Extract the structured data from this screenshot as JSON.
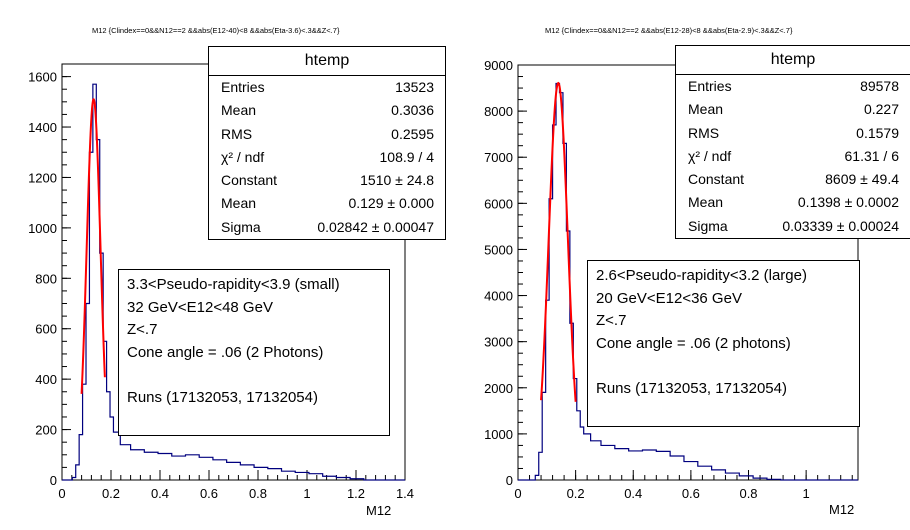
{
  "chart_data": [
    {
      "type": "histogram",
      "title": "M12 {Clindex==0&&N12==2 &&abs(E12-40)<8 &&abs(Eta-3.6)<.3&&Z<.7}",
      "xlabel": "M12",
      "ylabel": "",
      "xlim": [
        0,
        1.4
      ],
      "ylim": [
        0,
        1650
      ],
      "x_ticks": [
        "0",
        "0.2",
        "0.4",
        "0.6",
        "0.8",
        "1",
        "1.2",
        "1.4"
      ],
      "y_ticks": [
        "0",
        "200",
        "400",
        "600",
        "800",
        "1000",
        "1200",
        "1400",
        "1600"
      ],
      "bin_width": 0.014,
      "histogram": [
        [
          0.0,
          0
        ],
        [
          0.042,
          10
        ],
        [
          0.056,
          60
        ],
        [
          0.07,
          180
        ],
        [
          0.084,
          380
        ],
        [
          0.098,
          700
        ],
        [
          0.112,
          1300
        ],
        [
          0.126,
          1570
        ],
        [
          0.14,
          1350
        ],
        [
          0.154,
          900
        ],
        [
          0.168,
          550
        ],
        [
          0.182,
          350
        ],
        [
          0.196,
          250
        ],
        [
          0.21,
          190
        ],
        [
          0.238,
          140
        ],
        [
          0.28,
          120
        ],
        [
          0.336,
          110
        ],
        [
          0.392,
          105
        ],
        [
          0.448,
          95
        ],
        [
          0.504,
          100
        ],
        [
          0.56,
          90
        ],
        [
          0.616,
          80
        ],
        [
          0.672,
          70
        ],
        [
          0.728,
          60
        ],
        [
          0.784,
          50
        ],
        [
          0.84,
          45
        ],
        [
          0.896,
          35
        ],
        [
          0.952,
          30
        ],
        [
          1.008,
          25
        ],
        [
          1.064,
          15
        ],
        [
          1.12,
          10
        ],
        [
          1.176,
          5
        ],
        [
          1.232,
          0
        ],
        [
          1.4,
          0
        ]
      ],
      "fit": {
        "function": "gaus",
        "constant": 1510,
        "mean": 0.129,
        "sigma": 0.02842,
        "range": [
          0.08,
          0.175
        ]
      },
      "stats_box": {
        "title": "htemp",
        "rows": [
          {
            "label": "Entries",
            "value": "13523"
          },
          {
            "label": "Mean",
            "value": "0.3036"
          },
          {
            "label": "RMS",
            "value": "0.2595"
          },
          {
            "label": "χ² / ndf",
            "value": "108.9 / 4"
          },
          {
            "label": "Constant",
            "value": "1510 ± 24.8"
          },
          {
            "label": "Mean",
            "value": "0.129 ± 0.000"
          },
          {
            "label": "Sigma",
            "value": "0.02842 ± 0.00047"
          }
        ]
      },
      "annotation": [
        "3.3<Pseudo-rapidity<3.9 (small)",
        "32 GeV<E12<48 GeV",
        "Z<.7",
        "Cone angle = .06 (2 Photons)",
        "",
        "Runs  (17132053, 17132054)"
      ]
    },
    {
      "type": "histogram",
      "title": "M12 {Clindex==0&&N12==2 &&abs(E12-28)<8 &&abs(Eta-2.9)<.3&&Z<.7}",
      "xlabel": "M12",
      "ylabel": "",
      "xlim": [
        0,
        1.18
      ],
      "ylim": [
        0,
        9000
      ],
      "x_ticks": [
        "0",
        "0.2",
        "0.4",
        "0.6",
        "0.8",
        "1"
      ],
      "y_ticks": [
        "0",
        "1000",
        "2000",
        "3000",
        "4000",
        "5000",
        "6000",
        "7000",
        "8000",
        "9000"
      ],
      "bin_width": 0.012,
      "histogram": [
        [
          0.0,
          0
        ],
        [
          0.06,
          100
        ],
        [
          0.072,
          600
        ],
        [
          0.084,
          1900
        ],
        [
          0.096,
          3900
        ],
        [
          0.108,
          6100
        ],
        [
          0.12,
          7700
        ],
        [
          0.132,
          8600
        ],
        [
          0.144,
          8400
        ],
        [
          0.156,
          7300
        ],
        [
          0.168,
          5400
        ],
        [
          0.18,
          3400
        ],
        [
          0.192,
          2200
        ],
        [
          0.204,
          1500
        ],
        [
          0.216,
          1150
        ],
        [
          0.228,
          1000
        ],
        [
          0.252,
          850
        ],
        [
          0.288,
          750
        ],
        [
          0.336,
          680
        ],
        [
          0.384,
          630
        ],
        [
          0.432,
          650
        ],
        [
          0.48,
          620
        ],
        [
          0.528,
          520
        ],
        [
          0.576,
          400
        ],
        [
          0.624,
          300
        ],
        [
          0.672,
          220
        ],
        [
          0.72,
          150
        ],
        [
          0.768,
          90
        ],
        [
          0.816,
          40
        ],
        [
          0.864,
          15
        ],
        [
          0.912,
          0
        ],
        [
          1.18,
          0
        ]
      ],
      "fit": {
        "function": "gaus",
        "constant": 8609,
        "mean": 0.1398,
        "sigma": 0.03339,
        "range": [
          0.08,
          0.2
        ]
      },
      "stats_box": {
        "title": "htemp",
        "rows": [
          {
            "label": "Entries",
            "value": "89578"
          },
          {
            "label": "Mean",
            "value": "0.227"
          },
          {
            "label": "RMS",
            "value": "0.1579"
          },
          {
            "label": "χ² / ndf",
            "value": "61.31 / 6"
          },
          {
            "label": "Constant",
            "value": "8609 ± 49.4"
          },
          {
            "label": "Mean",
            "value": "0.1398 ± 0.0002"
          },
          {
            "label": "Sigma",
            "value": "0.03339 ± 0.00024"
          }
        ]
      },
      "annotation": [
        "2.6<Pseudo-rapidity<3.2 (large)",
        "20 GeV<E12<36 GeV",
        "Z<.7",
        "Cone angle = .06 (2 photons)",
        "",
        "Runs  (17132053, 17132054)"
      ]
    }
  ],
  "colors": {
    "histogram": "#00007f",
    "fit": "#ff0000",
    "axis": "#000000"
  }
}
